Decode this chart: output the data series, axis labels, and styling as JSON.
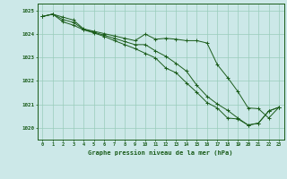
{
  "xlabel": "Graphe pression niveau de la mer (hPa)",
  "bg_color": "#cce8e8",
  "grid_color": "#99ccbb",
  "line_color": "#1a5c1a",
  "ylim": [
    1019.5,
    1025.3
  ],
  "yticks": [
    1020,
    1021,
    1022,
    1023,
    1024,
    1025
  ],
  "xticks": [
    0,
    1,
    2,
    3,
    4,
    5,
    6,
    7,
    8,
    9,
    10,
    11,
    12,
    13,
    14,
    15,
    16,
    17,
    18,
    19,
    20,
    21,
    22,
    23
  ],
  "line1": [
    1024.75,
    1024.85,
    1024.72,
    1024.6,
    1024.22,
    1024.12,
    1024.02,
    1023.92,
    1023.82,
    1023.72,
    1024.0,
    1023.78,
    1023.82,
    1023.78,
    1023.72,
    1023.72,
    1023.62,
    1022.7,
    1022.15,
    1021.55,
    1020.85,
    1020.82,
    1020.42,
    1020.88
  ],
  "line2": [
    1024.75,
    1024.85,
    1024.62,
    1024.5,
    1024.2,
    1024.08,
    1023.95,
    1023.82,
    1023.68,
    1023.55,
    1023.55,
    1023.28,
    1023.05,
    1022.75,
    1022.42,
    1021.82,
    1021.35,
    1021.02,
    1020.75,
    1020.42,
    1020.12,
    1020.2,
    1020.72,
    1020.88
  ],
  "line3": [
    1024.75,
    1024.85,
    1024.52,
    1024.38,
    1024.18,
    1024.05,
    1023.9,
    1023.72,
    1023.55,
    1023.38,
    1023.18,
    1022.98,
    1022.55,
    1022.35,
    1021.92,
    1021.52,
    1021.08,
    1020.85,
    1020.42,
    1020.38,
    1020.12,
    1020.2,
    1020.72,
    1020.88
  ]
}
